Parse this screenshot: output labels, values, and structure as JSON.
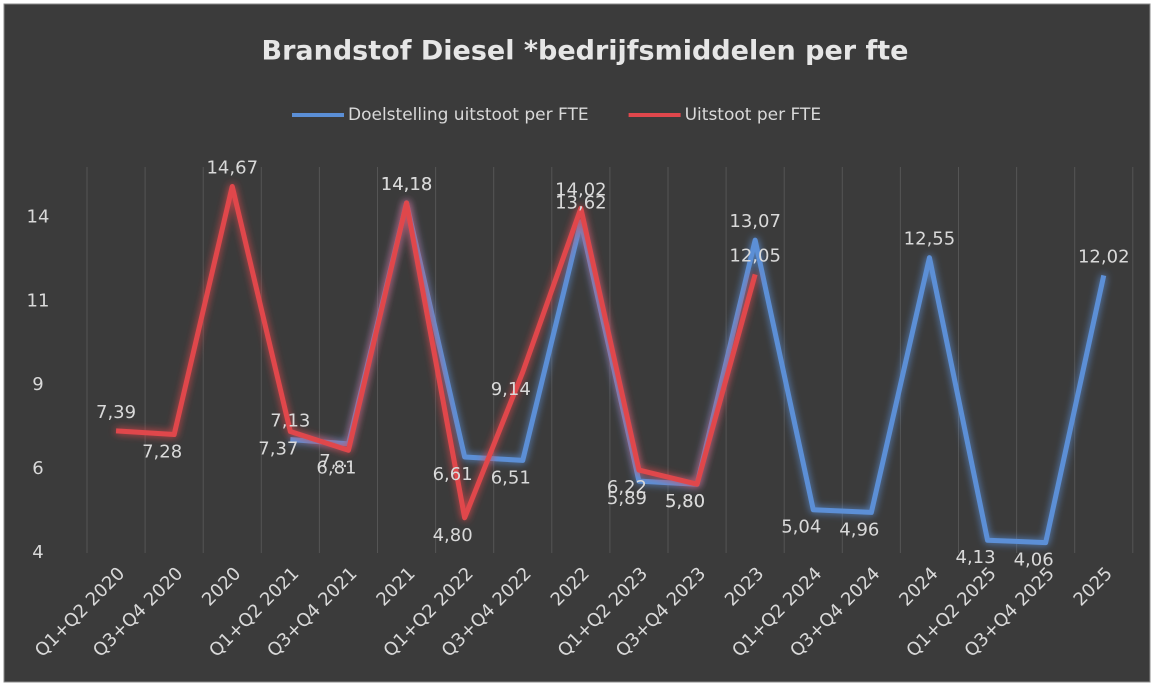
{
  "chart_data": {
    "type": "line",
    "title": "Brandstof Diesel *bedrijfsmiddelen per fte",
    "categories": [
      "Q1+Q2 2020",
      "Q3+Q4 2020",
      "2020",
      "Q1+Q2 2021",
      "Q3+Q4 2021",
      "2021",
      "Q1+Q2 2022",
      "Q3+Q4 2022",
      "2022",
      "Q1+Q2 2023",
      "Q3+Q4 2023",
      "2023",
      "Q1+Q2 2024",
      "Q3+Q4 2024",
      "2024",
      "Q1+Q2 2025",
      "Q3+Q4 2025",
      "2025"
    ],
    "series": [
      {
        "name": "Doelstelling uitstoot per FTE",
        "color": "#5b8fd6",
        "values": [
          null,
          null,
          null,
          7.13,
          7.0,
          14.18,
          6.61,
          6.51,
          13.62,
          5.89,
          5.8,
          13.07,
          5.04,
          4.96,
          12.55,
          4.13,
          4.06,
          12.02
        ],
        "value_labels": [
          null,
          null,
          null,
          "7,13",
          "7,...",
          "14,18",
          "6,61",
          "6,51",
          "13,62",
          "5,89",
          "5,80",
          "13,07",
          "5,04",
          "4,96",
          "12,55",
          "4,13",
          "4,06",
          "12,02"
        ]
      },
      {
        "name": "Uitstoot per FTE",
        "color": "#e0474c",
        "values": [
          7.39,
          7.28,
          14.67,
          7.37,
          6.81,
          14.18,
          4.8,
          9.14,
          14.02,
          6.22,
          5.8,
          12.05,
          null,
          null,
          null,
          null,
          null,
          null
        ],
        "value_labels": [
          "7,39",
          "7,28",
          "14,67",
          "7,37",
          "6,81",
          "14,18",
          "4,80",
          "9,14",
          "14,02",
          "6,22",
          "5,80",
          "12,05",
          null,
          null,
          null,
          null,
          null,
          null
        ]
      }
    ],
    "ylim": [
      3.75,
      15.25
    ],
    "yticks": [
      {
        "value": 3.75,
        "label": "4"
      },
      {
        "value": 6.25,
        "label": "6"
      },
      {
        "value": 8.75,
        "label": "9"
      },
      {
        "value": 11.25,
        "label": "11"
      },
      {
        "value": 13.75,
        "label": "14"
      }
    ],
    "grid": true,
    "legend": "top"
  }
}
